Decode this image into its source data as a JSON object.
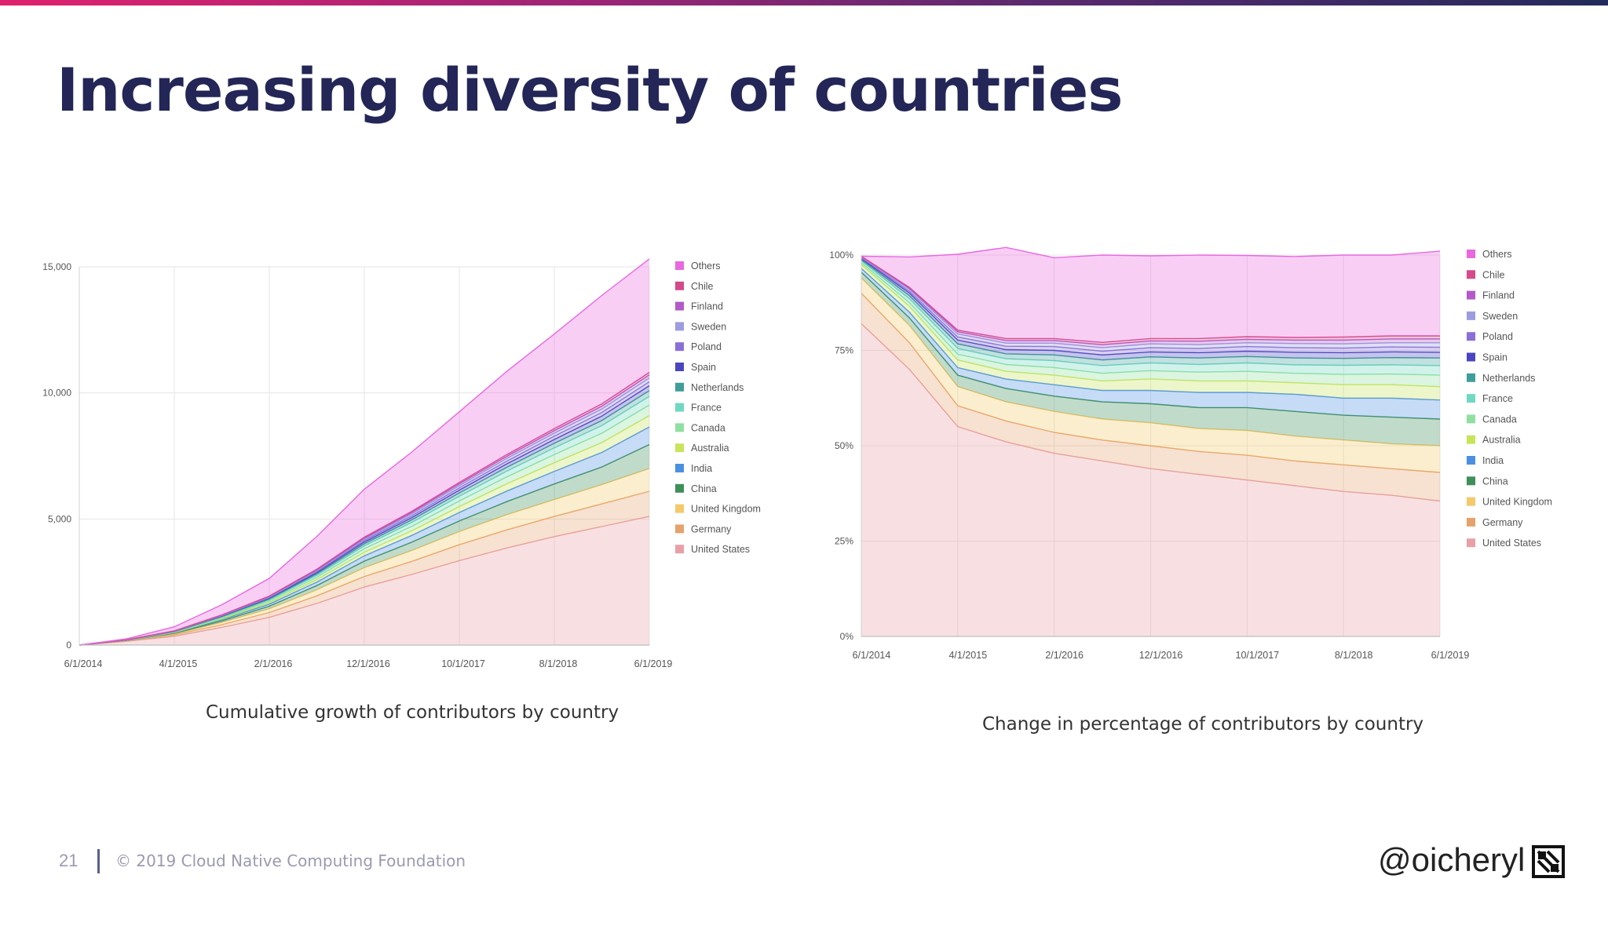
{
  "slide": {
    "title": "Increasing diversity of countries",
    "page_number": "21",
    "copyright": "© 2019 Cloud Native Computing Foundation",
    "handle": "@oicheryl",
    "logo_icon": "cncf-logo-icon"
  },
  "colors": {
    "title": "#232656",
    "United States": "#e8a0a6",
    "Germany": "#e6a26c",
    "United Kingdom": "#f4c96a",
    "China": "#3e8f5a",
    "India": "#4a90e2",
    "Australia": "#c8e45a",
    "Canada": "#8fe0a0",
    "France": "#6fd8c0",
    "Netherlands": "#3f9e9a",
    "Spain": "#4a46c0",
    "Poland": "#8a6fd8",
    "Sweden": "#9c9ce0",
    "Finland": "#b25ac8",
    "Chile": "#d44a8a",
    "Others": "#e868e0"
  },
  "chart_data": [
    {
      "type": "area",
      "stacked": true,
      "caption": "Cumulative growth of contributors by country",
      "x_tick_labels": [
        "6/1/2014",
        "4/1/2015",
        "2/1/2016",
        "12/1/2016",
        "10/1/2017",
        "8/1/2018",
        "6/1/2019"
      ],
      "x": [
        0,
        0.5,
        1,
        1.5,
        2,
        2.5,
        3,
        3.5,
        4,
        4.5,
        5,
        5.5,
        6
      ],
      "y_ticks": [
        0,
        5000,
        10000,
        15000
      ],
      "y_tick_labels": [
        "0",
        "5,000",
        "10,000",
        "15,000"
      ],
      "ylim": [
        0,
        15000
      ],
      "grid": true,
      "legend_position": "right",
      "series": [
        {
          "name": "United States",
          "values": [
            0,
            150,
            350,
            700,
            1100,
            1650,
            2300,
            2800,
            3350,
            3850,
            4300,
            4700,
            5100
          ]
        },
        {
          "name": "Germany",
          "values": [
            0,
            15,
            50,
            110,
            190,
            300,
            420,
            520,
            630,
            720,
            800,
            900,
            1000
          ]
        },
        {
          "name": "United Kingdom",
          "values": [
            0,
            12,
            40,
            90,
            150,
            240,
            350,
            430,
            520,
            600,
            670,
            760,
            900
          ]
        },
        {
          "name": "China",
          "values": [
            0,
            8,
            25,
            60,
            100,
            170,
            260,
            330,
            420,
            520,
            620,
            700,
            950
          ]
        },
        {
          "name": "India",
          "values": [
            0,
            6,
            20,
            50,
            85,
            140,
            210,
            270,
            340,
            420,
            500,
            580,
            700
          ]
        },
        {
          "name": "Australia",
          "values": [
            0,
            4,
            15,
            35,
            60,
            95,
            140,
            180,
            230,
            285,
            340,
            390,
            450
          ]
        },
        {
          "name": "Canada",
          "values": [
            0,
            4,
            15,
            35,
            60,
            95,
            140,
            180,
            225,
            275,
            325,
            370,
            420
          ]
        },
        {
          "name": "France",
          "values": [
            0,
            4,
            12,
            30,
            50,
            80,
            115,
            150,
            185,
            225,
            265,
            300,
            340
          ]
        },
        {
          "name": "Netherlands",
          "values": [
            0,
            2,
            8,
            20,
            35,
            55,
            80,
            105,
            130,
            155,
            180,
            205,
            230
          ]
        },
        {
          "name": "Spain",
          "values": [
            0,
            2,
            8,
            18,
            30,
            48,
            70,
            90,
            112,
            135,
            155,
            175,
            195
          ]
        },
        {
          "name": "Poland",
          "values": [
            0,
            2,
            6,
            15,
            25,
            40,
            58,
            75,
            92,
            110,
            128,
            145,
            160
          ]
        },
        {
          "name": "Sweden",
          "values": [
            0,
            2,
            6,
            14,
            24,
            38,
            54,
            70,
            86,
            102,
            118,
            132,
            145
          ]
        },
        {
          "name": "Finland",
          "values": [
            0,
            1,
            5,
            12,
            20,
            32,
            46,
            60,
            74,
            88,
            102,
            115,
            125
          ]
        },
        {
          "name": "Chile",
          "values": [
            0,
            1,
            4,
            10,
            16,
            25,
            36,
            47,
            58,
            70,
            82,
            93,
            100
          ]
        },
        {
          "name": "Others",
          "values": [
            0,
            40,
            160,
            400,
            700,
            1300,
            1900,
            2350,
            2800,
            3300,
            3750,
            4300,
            4500
          ]
        }
      ]
    },
    {
      "type": "area",
      "stacked": true,
      "normalized": true,
      "caption": "Change in percentage of contributors by country",
      "x_tick_labels": [
        "6/1/2014",
        "4/1/2015",
        "2/1/2016",
        "12/1/2016",
        "10/1/2017",
        "8/1/2018",
        "6/1/2019"
      ],
      "x": [
        0,
        0.5,
        1,
        1.5,
        2,
        2.5,
        3,
        3.5,
        4,
        4.5,
        5,
        5.5,
        6
      ],
      "y_ticks": [
        0,
        25,
        50,
        75,
        100
      ],
      "y_tick_labels": [
        "0%",
        "25%",
        "50%",
        "75%",
        "100%"
      ],
      "ylim": [
        0,
        100
      ],
      "grid": true,
      "legend_position": "right",
      "series": [
        {
          "name": "United States",
          "values": [
            82,
            70,
            55,
            51,
            48,
            46,
            44,
            42.5,
            41,
            39.5,
            38,
            37,
            35.5
          ]
        },
        {
          "name": "Germany",
          "values": [
            8,
            7,
            5.5,
            5.5,
            5.5,
            5.5,
            6,
            6,
            6.5,
            6.5,
            7,
            7,
            7.5
          ]
        },
        {
          "name": "United Kingdom",
          "values": [
            4,
            4.5,
            5,
            5,
            5.5,
            5.5,
            6,
            6,
            6.5,
            6.5,
            6.5,
            6.5,
            7
          ]
        },
        {
          "name": "China",
          "values": [
            1.5,
            2,
            3,
            3.5,
            4,
            4.5,
            5,
            5.5,
            6,
            6.5,
            6.5,
            7,
            7
          ]
        },
        {
          "name": "India",
          "values": [
            1,
            1.5,
            2,
            2.5,
            3,
            3,
            3.5,
            4,
            4,
            4.5,
            4.5,
            5,
            5
          ]
        },
        {
          "name": "Australia",
          "values": [
            1,
            1.5,
            2,
            2,
            2.5,
            2.5,
            3,
            3,
            3,
            3,
            3.5,
            3.5,
            3.5
          ]
        },
        {
          "name": "Canada",
          "values": [
            0.5,
            1,
            1.5,
            1.8,
            2,
            2,
            2.2,
            2.3,
            2.5,
            2.5,
            2.7,
            2.8,
            3
          ]
        },
        {
          "name": "France",
          "values": [
            0.5,
            1,
            1.5,
            1.5,
            1.8,
            2,
            2,
            2,
            2.2,
            2.2,
            2.4,
            2.4,
            2.5
          ]
        },
        {
          "name": "Netherlands",
          "values": [
            0.3,
            0.8,
            1.2,
            1.3,
            1.5,
            1.5,
            1.6,
            1.7,
            1.7,
            1.8,
            1.8,
            1.9,
            2
          ]
        },
        {
          "name": "Spain",
          "values": [
            0.3,
            0.7,
            1,
            1.1,
            1.2,
            1.3,
            1.3,
            1.4,
            1.4,
            1.5,
            1.5,
            1.5,
            1.5
          ]
        },
        {
          "name": "Poland",
          "values": [
            0.2,
            0.5,
            0.8,
            0.9,
            1,
            1,
            1.1,
            1.1,
            1.2,
            1.2,
            1.2,
            1.3,
            1.3
          ]
        },
        {
          "name": "Sweden",
          "values": [
            0.2,
            0.5,
            0.8,
            0.8,
            0.9,
            0.9,
            1,
            1,
            1,
            1.1,
            1.1,
            1.1,
            1.2
          ]
        },
        {
          "name": "Finland",
          "values": [
            0.1,
            0.3,
            0.6,
            0.7,
            0.7,
            0.8,
            0.8,
            0.9,
            0.9,
            0.9,
            1,
            1,
            1
          ]
        },
        {
          "name": "Chile",
          "values": [
            0.1,
            0.2,
            0.4,
            0.5,
            0.5,
            0.6,
            0.6,
            0.7,
            0.7,
            0.7,
            0.8,
            0.8,
            0.8
          ]
        },
        {
          "name": "Others",
          "values": [
            0,
            8,
            19.9,
            23.9,
            21.2,
            22.9,
            21.7,
            21.9,
            21.3,
            21.2,
            21.5,
            21.2,
            22.2
          ]
        }
      ]
    }
  ]
}
